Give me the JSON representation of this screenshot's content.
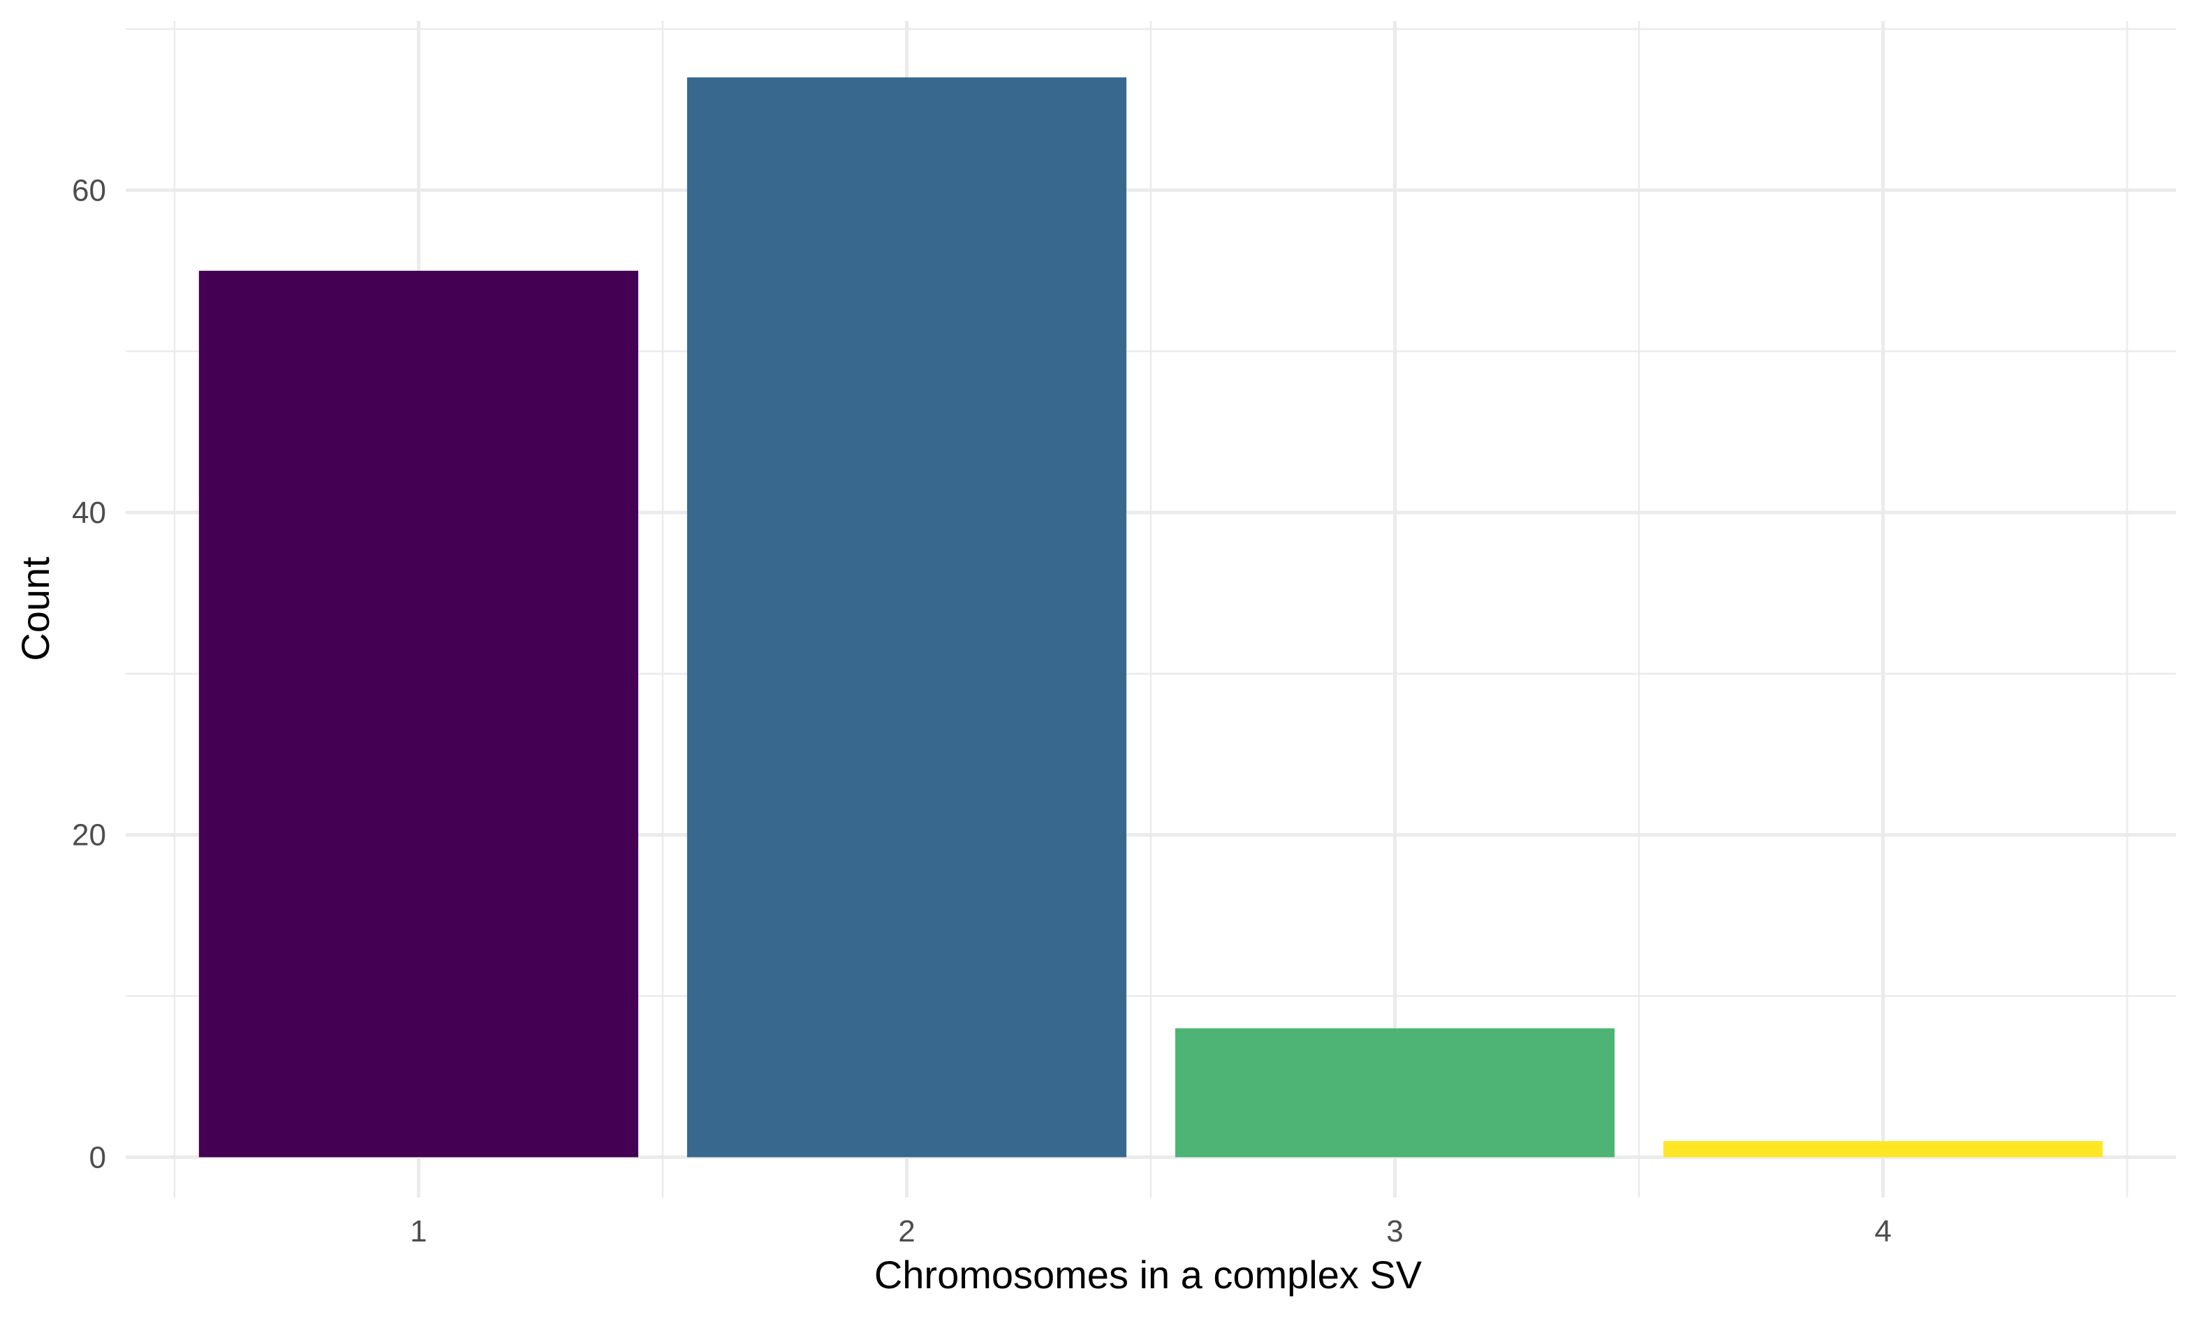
{
  "chart_data": {
    "type": "bar",
    "title": "",
    "xlabel": "Chromosomes in a complex SV",
    "ylabel": "Count",
    "categories": [
      "1",
      "2",
      "3",
      "4"
    ],
    "values": [
      55,
      67,
      8,
      1
    ],
    "colors": [
      "#440154",
      "#39688e",
      "#4db475",
      "#fde725"
    ],
    "ylim": [
      -2.5,
      70.5
    ],
    "yticks": [
      0,
      20,
      40,
      60
    ],
    "y_minor_ticks": [
      10,
      30,
      50,
      70
    ],
    "grid": true,
    "legend": "none"
  }
}
